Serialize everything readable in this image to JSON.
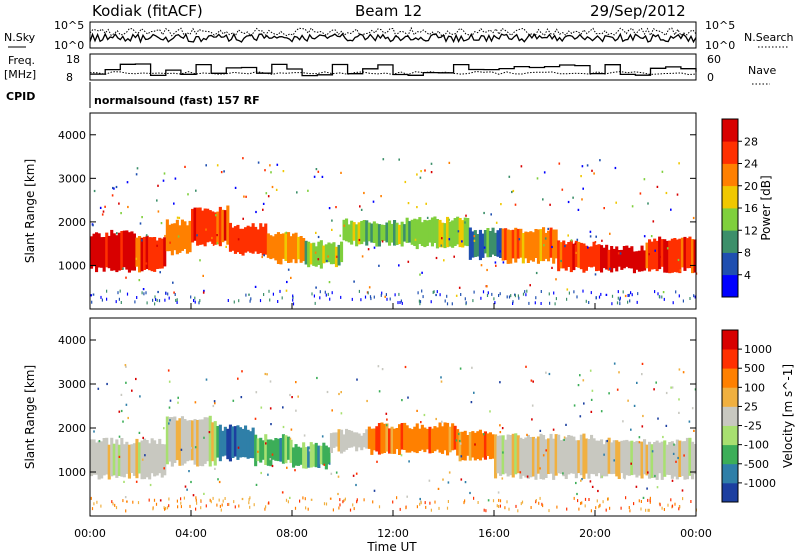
{
  "header": {
    "station": "Kodiak (fitACF)",
    "beam": "Beam 12",
    "date": "29/Sep/2012"
  },
  "status_panels": {
    "nsky_label": "N.Sky",
    "nsky_ticks": [
      "10^5",
      "10^0"
    ],
    "nsearch_label": "N.Search",
    "nsearch_ticks": [
      "10^5",
      "10^0"
    ],
    "freq_label_1": "Freq.",
    "freq_label_2": "[MHz]",
    "freq_ticks": [
      "18",
      "8"
    ],
    "nave_label": "Nave",
    "nave_ticks": [
      "60",
      "0"
    ],
    "cpid_label": "CPID",
    "cpid_text": "normalsound (fast) 157 RF"
  },
  "chart_data": [
    {
      "type": "heatmap",
      "name": "power",
      "ylabel": "Slant Range [km]",
      "yticks": [
        "4000",
        "3000",
        "2000",
        "1000"
      ],
      "ylim": [
        0,
        4500
      ],
      "colorbar_label": "Power [dB]",
      "colorbar_ticks": [
        "28",
        "24",
        "20",
        "16",
        "12",
        "8",
        "4"
      ],
      "colors": [
        "#0000ff",
        "#1f4fb0",
        "#3c8f6a",
        "#7fcf3c",
        "#f0c800",
        "#ff8000",
        "#ff3000",
        "#d80000"
      ],
      "segments": [
        [
          0.0,
          0.8,
          900,
          1700,
          7
        ],
        [
          0.8,
          1.8,
          900,
          1750,
          7
        ],
        [
          1.8,
          3.0,
          900,
          1650,
          6
        ],
        [
          3.0,
          4.0,
          1300,
          2000,
          5
        ],
        [
          4.0,
          5.5,
          1500,
          2300,
          6
        ],
        [
          5.5,
          7.0,
          1300,
          1900,
          6
        ],
        [
          7.0,
          8.5,
          1100,
          1700,
          5
        ],
        [
          8.5,
          10.0,
          1000,
          1500,
          3
        ],
        [
          10.0,
          12.5,
          1500,
          2000,
          3
        ],
        [
          12.5,
          15.0,
          1450,
          2050,
          3
        ],
        [
          15.0,
          16.3,
          1200,
          1800,
          2
        ],
        [
          16.3,
          18.5,
          1100,
          1800,
          5
        ],
        [
          18.5,
          20.2,
          900,
          1500,
          6
        ],
        [
          20.2,
          22.0,
          900,
          1400,
          7
        ],
        [
          22.0,
          24.0,
          900,
          1600,
          6
        ]
      ]
    },
    {
      "type": "heatmap",
      "name": "velocity",
      "ylabel": "Slant Range [km]",
      "yticks": [
        "4000",
        "3000",
        "2000",
        "1000"
      ],
      "ylim": [
        0,
        4500
      ],
      "xlabel": "Time UT",
      "xticks": [
        "00:00",
        "04:00",
        "08:00",
        "12:00",
        "16:00",
        "20:00",
        "00:00"
      ],
      "xlim": [
        0,
        24
      ],
      "colorbar_label": "Velocity [m s^-1]",
      "colorbar_ticks": [
        "1000",
        "500",
        "100",
        "25",
        "-25",
        "-100",
        "-500",
        "-1000"
      ],
      "colors": [
        "#1c3fa0",
        "#2f7fa8",
        "#3cae58",
        "#a8e070",
        "#c8c8c0",
        "#f0b040",
        "#ff8000",
        "#ff3000",
        "#d80000"
      ],
      "segments": [
        [
          0.0,
          3.0,
          900,
          1700,
          4
        ],
        [
          3.0,
          5.0,
          1200,
          2200,
          4
        ],
        [
          5.0,
          6.5,
          1300,
          2000,
          1
        ],
        [
          6.5,
          8.0,
          1200,
          1800,
          2
        ],
        [
          8.0,
          9.5,
          1100,
          1600,
          2
        ],
        [
          9.5,
          11.0,
          1500,
          1900,
          4
        ],
        [
          11.0,
          14.5,
          1450,
          2050,
          6
        ],
        [
          14.5,
          16.0,
          1300,
          1900,
          6
        ],
        [
          16.0,
          20.0,
          900,
          1800,
          4
        ],
        [
          20.0,
          24.0,
          900,
          1700,
          4
        ]
      ]
    }
  ]
}
